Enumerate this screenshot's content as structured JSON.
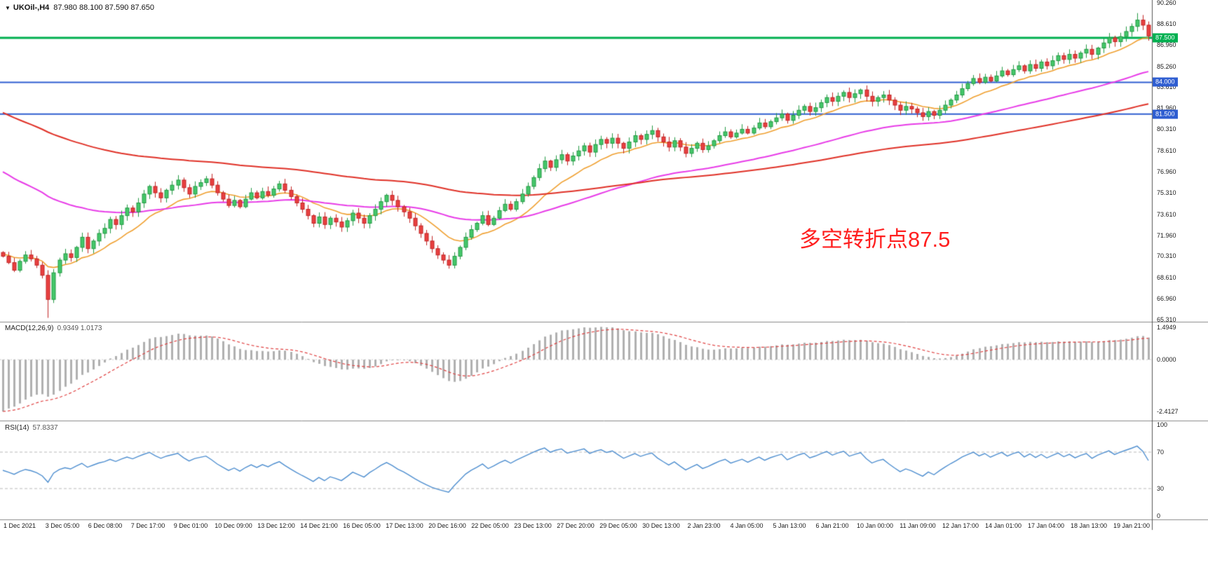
{
  "window": {
    "dropdown_icon": "▼",
    "symbol_title": "UKOil-,H4",
    "ohlc_values": "87.980 88.100 87.590 87.650"
  },
  "annotation": {
    "text": "多空转折点87.5",
    "color": "#ff1f1f"
  },
  "chart_data": {
    "type": "candlestick",
    "symbol": "UKOil-",
    "timeframe": "H4",
    "price_axis": {
      "min": 65.31,
      "max": 90.26,
      "labels": [
        "90.260",
        "88.610",
        "86.960",
        "85.260",
        "83.610",
        "81.960",
        "80.310",
        "78.610",
        "76.960",
        "75.310",
        "73.610",
        "71.960",
        "70.310",
        "68.610",
        "66.960",
        "65.310"
      ]
    },
    "time_labels": [
      "1 Dec 2021",
      "3 Dec 05:00",
      "6 Dec 08:00",
      "7 Dec 17:00",
      "9 Dec 01:00",
      "10 Dec 09:00",
      "13 Dec 12:00",
      "14 Dec 21:00",
      "16 Dec 05:00",
      "17 Dec 13:00",
      "20 Dec 16:00",
      "22 Dec 05:00",
      "23 Dec 13:00",
      "27 Dec 20:00",
      "29 Dec 05:00",
      "30 Dec 13:00",
      "2 Jan 23:00",
      "4 Jan 05:00",
      "5 Jan 13:00",
      "6 Jan 21:00",
      "10 Jan 00:00",
      "11 Jan 09:00",
      "12 Jan 17:00",
      "14 Jan 01:00",
      "17 Jan 04:00",
      "18 Jan 13:00",
      "19 Jan 21:00"
    ],
    "closes": [
      70.3,
      69.8,
      69.2,
      69.9,
      70.4,
      70.1,
      69.6,
      68.8,
      66.9,
      69.0,
      70.0,
      70.5,
      70.2,
      71.0,
      71.8,
      70.9,
      71.5,
      72.1,
      72.5,
      73.2,
      72.8,
      73.5,
      74.1,
      73.8,
      74.5,
      75.2,
      75.8,
      75.3,
      74.9,
      75.5,
      75.9,
      76.3,
      75.7,
      75.2,
      75.8,
      76.1,
      76.4,
      75.9,
      75.3,
      74.8,
      74.3,
      74.7,
      74.2,
      74.8,
      75.3,
      74.9,
      75.4,
      75.1,
      75.6,
      76.0,
      75.5,
      75.0,
      74.5,
      74.0,
      73.5,
      72.9,
      73.4,
      72.8,
      73.3,
      73.0,
      72.6,
      73.1,
      73.7,
      73.3,
      72.9,
      73.5,
      74.0,
      74.6,
      75.1,
      74.7,
      74.2,
      73.8,
      73.3,
      72.7,
      72.1,
      71.5,
      70.9,
      70.4,
      70.0,
      69.6,
      70.3,
      71.0,
      71.8,
      72.4,
      72.9,
      73.5,
      72.8,
      73.3,
      73.9,
      74.4,
      74.0,
      74.6,
      75.2,
      75.8,
      76.5,
      77.2,
      77.8,
      77.3,
      77.9,
      78.3,
      77.8,
      78.2,
      78.6,
      79.0,
      78.5,
      79.1,
      79.5,
      79.2,
      79.6,
      79.2,
      78.8,
      79.3,
      79.8,
      79.5,
      79.9,
      80.2,
      79.7,
      79.3,
      78.9,
      79.4,
      78.9,
      78.4,
      78.8,
      79.2,
      78.7,
      79.0,
      79.4,
      79.8,
      80.1,
      79.7,
      80.0,
      80.3,
      80.0,
      80.4,
      80.8,
      80.5,
      80.9,
      81.2,
      81.5,
      81.0,
      81.4,
      81.8,
      82.1,
      81.7,
      82.0,
      82.4,
      82.8,
      82.5,
      82.9,
      83.2,
      82.8,
      83.1,
      83.4,
      82.9,
      82.5,
      82.8,
      83.0,
      82.6,
      82.2,
      81.8,
      82.1,
      81.9,
      81.6,
      81.3,
      81.7,
      81.4,
      81.8,
      82.2,
      82.6,
      83.0,
      83.5,
      83.9,
      84.3,
      84.0,
      84.4,
      84.1,
      84.5,
      84.9,
      84.6,
      85.0,
      85.3,
      84.9,
      85.4,
      85.1,
      85.6,
      85.3,
      85.7,
      86.1,
      85.8,
      86.2,
      85.9,
      86.3,
      86.6,
      86.2,
      86.7,
      87.1,
      87.5,
      87.2,
      87.6,
      88.0,
      88.4,
      88.9,
      88.5,
      87.65
    ],
    "wick_overrides": {
      "8": {
        "low": 65.45
      },
      "201": {
        "high": 89.45
      }
    },
    "candle_up_color": "#45c76a",
    "candle_up_border": "#249a44",
    "candle_down_color": "#e84040",
    "candle_down_border": "#c22525",
    "moving_averages": [
      {
        "name": "ma-fast-orange",
        "color": "#f0a030",
        "period": 13,
        "seed": 70.5,
        "width": 1.6
      },
      {
        "name": "ma-medium-magenta",
        "color": "#e83ce8",
        "period": 55,
        "seed": 77.2,
        "width": 2
      },
      {
        "name": "ma-slow-red",
        "color": "#e03228",
        "period": 120,
        "seed": 81.8,
        "width": 2
      }
    ],
    "hlines": [
      {
        "price": 87.5,
        "color": "#00b050",
        "width": 3,
        "label": "87.500"
      },
      {
        "price": 84.0,
        "color": "#2f5ed1",
        "width": 2,
        "label": "84.000"
      },
      {
        "price": 81.5,
        "color": "#2f5ed1",
        "width": 2,
        "label": "81.500"
      }
    ],
    "macd": {
      "label": "MACD(12,26,9)",
      "values": "0.9349 1.0173",
      "fast_period": 12,
      "slow_period": 26,
      "signal_period": 9,
      "fast_seed": 70.3,
      "slow_seed": 72.9,
      "axis_labels": [
        "1.4949",
        "0.0000",
        "-2.4127"
      ],
      "range": [
        -2.7,
        1.6
      ],
      "bar_color": "#b0b0b0",
      "signal_color": "#e04040"
    },
    "rsi": {
      "label": "RSI(14)",
      "value": "57.8337",
      "period": 14,
      "axis_labels": [
        "100",
        "70",
        "30",
        "0"
      ],
      "levels": [
        70,
        30
      ],
      "range": [
        0,
        100
      ],
      "line_color": "#4f8fd0",
      "level_color": "#b8b8b8"
    }
  }
}
